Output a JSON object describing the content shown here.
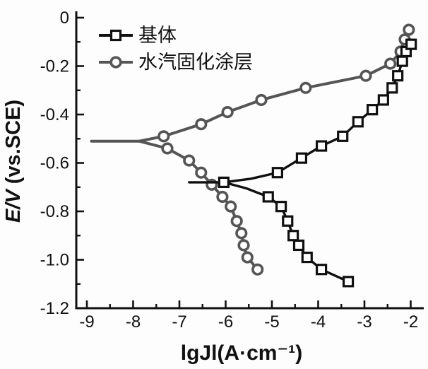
{
  "page": {
    "background": "#ffffff"
  },
  "chart_data": {
    "type": "line",
    "title": "",
    "xlabel": "lgJl(A·cm⁻¹)",
    "ylabel": {
      "italic": "E/V",
      "rest": " (vs.SCE)"
    },
    "xlim": [
      -9,
      -2
    ],
    "ylim": [
      -1.2,
      0
    ],
    "x_ticks": [
      -9,
      -8,
      -7,
      -6,
      -5,
      -4,
      -3,
      -2
    ],
    "x_tick_labels": [
      "-9",
      "-8",
      "-7",
      "-6",
      "-5",
      "-4",
      "-3",
      "-2"
    ],
    "y_ticks": [
      0,
      -0.2,
      -0.4,
      -0.6,
      -0.8,
      -1.0,
      -1.2
    ],
    "y_tick_labels": [
      "0",
      "-0.2",
      "-0.4",
      "-0.6",
      "-0.8",
      "-1.0",
      "-1.2"
    ],
    "grid": false,
    "legend_position": "top-left",
    "axis_color": "#111111",
    "series": [
      {
        "name": "基体",
        "key": "substrate",
        "marker": "square",
        "color": "#101010",
        "line_paths": [
          [
            [
              -6.79,
              -0.68
            ],
            [
              -6.04,
              -0.68
            ],
            [
              -5.45,
              -0.665
            ],
            [
              -4.88,
              -0.64
            ],
            [
              -4.36,
              -0.58
            ],
            [
              -3.93,
              -0.53
            ],
            [
              -3.47,
              -0.49
            ],
            [
              -3.14,
              -0.43
            ],
            [
              -2.83,
              -0.38
            ],
            [
              -2.59,
              -0.34
            ],
            [
              -2.4,
              -0.29
            ],
            [
              -2.28,
              -0.24
            ],
            [
              -2.18,
              -0.18
            ],
            [
              -2.1,
              -0.14
            ],
            [
              -1.99,
              -0.11
            ]
          ],
          [
            [
              -6.04,
              -0.68
            ],
            [
              -5.55,
              -0.705
            ],
            [
              -5.08,
              -0.74
            ],
            [
              -4.8,
              -0.78
            ],
            [
              -4.66,
              -0.84
            ],
            [
              -4.54,
              -0.9
            ],
            [
              -4.42,
              -0.94
            ],
            [
              -4.24,
              -0.99
            ],
            [
              -3.93,
              -1.04
            ],
            [
              -3.35,
              -1.09
            ]
          ]
        ],
        "markers": [
          [
            -6.04,
            -0.68
          ],
          [
            -4.88,
            -0.64
          ],
          [
            -4.36,
            -0.58
          ],
          [
            -3.93,
            -0.53
          ],
          [
            -3.47,
            -0.49
          ],
          [
            -3.14,
            -0.43
          ],
          [
            -2.83,
            -0.38
          ],
          [
            -2.59,
            -0.34
          ],
          [
            -2.4,
            -0.29
          ],
          [
            -2.28,
            -0.24
          ],
          [
            -2.18,
            -0.18
          ],
          [
            -2.1,
            -0.14
          ],
          [
            -1.99,
            -0.11
          ],
          [
            -5.08,
            -0.74
          ],
          [
            -4.8,
            -0.78
          ],
          [
            -4.66,
            -0.84
          ],
          [
            -4.54,
            -0.9
          ],
          [
            -4.42,
            -0.94
          ],
          [
            -4.24,
            -0.99
          ],
          [
            -3.93,
            -1.04
          ],
          [
            -3.35,
            -1.09
          ]
        ]
      },
      {
        "name": "水汽固化涂层",
        "key": "coating",
        "marker": "circle",
        "color": "#555555",
        "line_paths": [
          [
            [
              -8.9,
              -0.51
            ],
            [
              -7.87,
              -0.51
            ],
            [
              -7.34,
              -0.49
            ],
            [
              -6.53,
              -0.44
            ],
            [
              -5.96,
              -0.39
            ],
            [
              -5.23,
              -0.34
            ],
            [
              -4.27,
              -0.29
            ],
            [
              -2.97,
              -0.24
            ],
            [
              -2.44,
              -0.19
            ],
            [
              -2.22,
              -0.14
            ],
            [
              -2.13,
              -0.09
            ],
            [
              -2.04,
              -0.05
            ]
          ],
          [
            [
              -7.87,
              -0.51
            ],
            [
              -7.26,
              -0.54
            ],
            [
              -6.79,
              -0.59
            ],
            [
              -6.53,
              -0.64
            ],
            [
              -6.3,
              -0.69
            ],
            [
              -6.07,
              -0.74
            ],
            [
              -5.89,
              -0.78
            ],
            [
              -5.76,
              -0.84
            ],
            [
              -5.66,
              -0.89
            ],
            [
              -5.61,
              -0.94
            ],
            [
              -5.53,
              -0.99
            ],
            [
              -5.31,
              -1.04
            ]
          ]
        ],
        "markers": [
          [
            -7.34,
            -0.49
          ],
          [
            -6.53,
            -0.44
          ],
          [
            -5.96,
            -0.39
          ],
          [
            -5.23,
            -0.34
          ],
          [
            -4.27,
            -0.29
          ],
          [
            -2.97,
            -0.24
          ],
          [
            -2.44,
            -0.19
          ],
          [
            -2.22,
            -0.14
          ],
          [
            -2.13,
            -0.09
          ],
          [
            -2.04,
            -0.05
          ],
          [
            -7.26,
            -0.54
          ],
          [
            -6.79,
            -0.59
          ],
          [
            -6.53,
            -0.64
          ],
          [
            -6.3,
            -0.69
          ],
          [
            -6.07,
            -0.74
          ],
          [
            -5.89,
            -0.78
          ],
          [
            -5.76,
            -0.84
          ],
          [
            -5.66,
            -0.89
          ],
          [
            -5.61,
            -0.94
          ],
          [
            -5.53,
            -0.99
          ],
          [
            -5.31,
            -1.04
          ]
        ]
      }
    ]
  }
}
